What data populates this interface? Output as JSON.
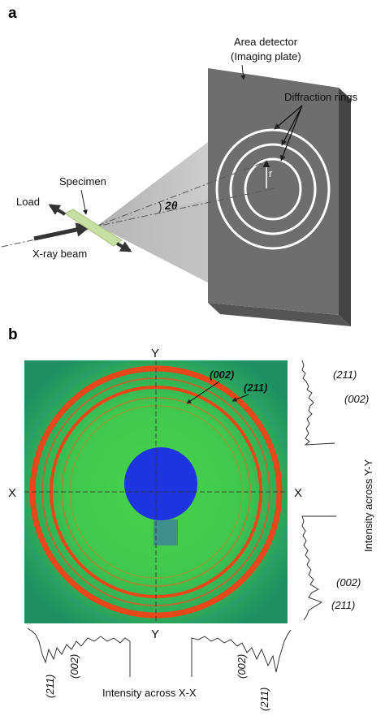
{
  "panel_a": {
    "letter": "a",
    "detector_label_line1": "Area detector",
    "detector_label_line2": "(Imaging plate)",
    "rings_label": "Diffraction rings",
    "specimen_label": "Specimen",
    "load_label": "Load",
    "beam_label": "X-ray beam",
    "angle_label": "2θ",
    "radius_label": "r"
  },
  "panel_b": {
    "letter": "b",
    "axis_y_top": "Y",
    "axis_y_bottom": "Y",
    "axis_x_left": "X",
    "axis_x_right": "X",
    "ring_002_label": "(002)",
    "ring_211_label": "(211)",
    "profile_y_caption": "Intensity across Y-Y",
    "profile_x_caption": "Intensity across X-X",
    "profile_y_top_211": "(211)",
    "profile_y_top_002": "(002)",
    "profile_y_bottom_002": "(002)",
    "profile_y_bottom_211": "(211)",
    "profile_x_left_211": "(211)",
    "profile_x_left_002": "(002)",
    "profile_x_right_002": "(002)",
    "profile_x_right_211": "(211)"
  },
  "colors": {
    "detector_face": "#6f6f6f",
    "detector_side": "#4a4a4a",
    "cone": "#c9c9c9",
    "specimen": "#c9dfa6",
    "pattern_background": "#2ea84a",
    "ring_red": "#e8471c",
    "beam_stop": "#1e34e0"
  }
}
